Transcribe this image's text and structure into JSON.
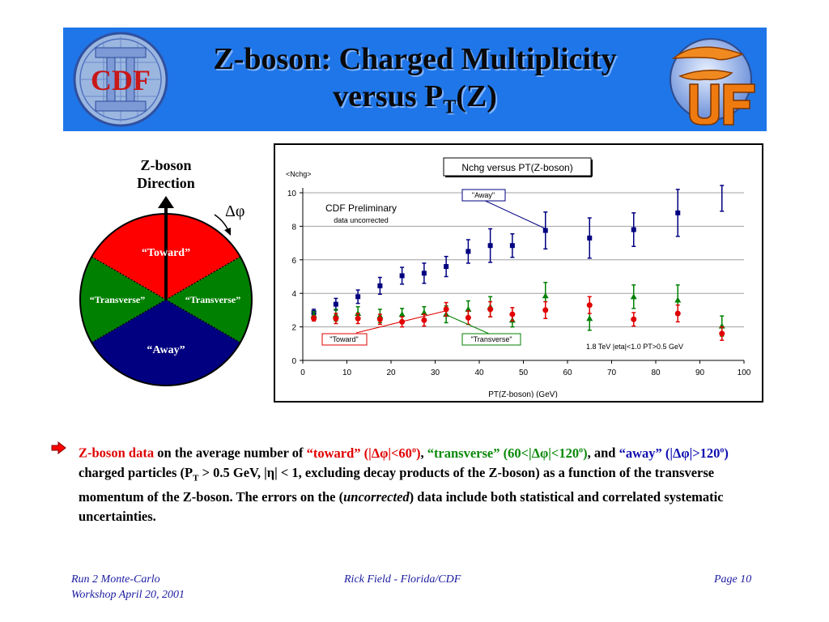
{
  "slide": {
    "title_line1": "Z-boson: Charged Multiplicity",
    "title_line2_prefix": "versus P",
    "title_line2_sub": "T",
    "title_line2_suffix": "(Z)",
    "logo_left_text": "CDF",
    "colors": {
      "banner": "#1f76e8",
      "toward": "#ff0000",
      "transverse": "#008000",
      "away": "#000080"
    }
  },
  "diagram": {
    "direction_line1": "Z-boson",
    "direction_line2": "Direction",
    "delta_phi": "Δφ",
    "toward": "“Toward”",
    "transverse_left": "“Transverse”",
    "transverse_right": "“Transverse”",
    "away": "“Away”"
  },
  "chart_data": {
    "type": "scatter",
    "title": "Nchg versus PT(Z-boson)",
    "xlabel": "PT(Z-boson)  (GeV)",
    "ylabel": "<Nchg>",
    "xlim": [
      0,
      100
    ],
    "ylim": [
      0,
      10
    ],
    "xticks": [
      0,
      10,
      20,
      30,
      40,
      50,
      60,
      70,
      80,
      90,
      100
    ],
    "yticks": [
      0,
      2,
      4,
      6,
      8,
      10
    ],
    "grid": "horizontal",
    "annotations": {
      "preliminary": "CDF Preliminary",
      "uncorrected": "data uncorrected",
      "cuts": "1.8 TeV |eta|<1.0 PT>0.5 GeV"
    },
    "series": [
      {
        "name": "\"Away\"",
        "color": "#000080",
        "marker": "square",
        "x": [
          2.5,
          7.5,
          12.5,
          17.5,
          22.5,
          27.5,
          32.5,
          37.5,
          42.5,
          47.5,
          55,
          65,
          75,
          85,
          95
        ],
        "y": [
          2.85,
          3.35,
          3.8,
          4.45,
          5.05,
          5.2,
          5.6,
          6.5,
          6.85,
          6.85,
          7.75,
          7.3,
          7.8,
          8.8,
          10.3
        ],
        "err": [
          0.2,
          0.35,
          0.4,
          0.5,
          0.5,
          0.6,
          0.6,
          0.7,
          1.0,
          0.7,
          1.1,
          1.2,
          1.0,
          1.4,
          1.4
        ]
      },
      {
        "name": "\"Transverse\"",
        "color": "#008000",
        "marker": "triangle",
        "x": [
          2.5,
          7.5,
          12.5,
          17.5,
          22.5,
          27.5,
          32.5,
          37.5,
          42.5,
          47.5,
          55,
          65,
          75,
          85,
          95
        ],
        "y": [
          2.7,
          2.7,
          2.8,
          2.65,
          2.75,
          2.85,
          2.75,
          3.05,
          3.2,
          2.4,
          3.85,
          2.5,
          3.8,
          3.6,
          2.05
        ],
        "err": [
          0.2,
          0.35,
          0.4,
          0.4,
          0.35,
          0.35,
          0.5,
          0.5,
          0.6,
          0.4,
          0.8,
          0.7,
          0.7,
          0.9,
          0.6
        ]
      },
      {
        "name": "\"Toward\"",
        "color": "#e00000",
        "marker": "circle",
        "x": [
          2.5,
          7.5,
          12.5,
          17.5,
          22.5,
          27.5,
          32.5,
          37.5,
          42.5,
          47.5,
          55,
          65,
          75,
          85,
          95
        ],
        "y": [
          2.5,
          2.5,
          2.5,
          2.45,
          2.3,
          2.4,
          3.05,
          2.55,
          3.05,
          2.75,
          3.0,
          3.3,
          2.45,
          2.8,
          1.6
        ],
        "err": [
          0.15,
          0.3,
          0.3,
          0.3,
          0.3,
          0.35,
          0.4,
          0.4,
          0.45,
          0.4,
          0.5,
          0.5,
          0.4,
          0.5,
          0.4
        ]
      }
    ]
  },
  "text": {
    "part1": "Z-boson data",
    "part2": " on the average number of ",
    "part3": "“toward” (|Δφ|<60",
    "deg1": "o",
    "part4": ")",
    "part5": ", ",
    "part6": "“transverse” (60<|Δφ|<120",
    "deg2": "o",
    "part7": ")",
    "part8": ", and ",
    "part9": "“away” (|Δφ|>120",
    "deg3": "o",
    "part10": ")",
    "part11": " charged particles (P",
    "sub_t": "T",
    "part12": " > 0.5 GeV, |η| < 1, excluding decay products of the Z-boson)  as a function of the transverse momentum of the Z-boson. The errors on the (",
    "part13": "uncorrected",
    "part14": ") data include both statistical and correlated systematic uncertainties."
  },
  "footer": {
    "left_line1": "Run 2 Monte-Carlo",
    "left_line2": "Workshop April 20, 2001",
    "center": "Rick Field - Florida/CDF",
    "right": "Page 10"
  }
}
